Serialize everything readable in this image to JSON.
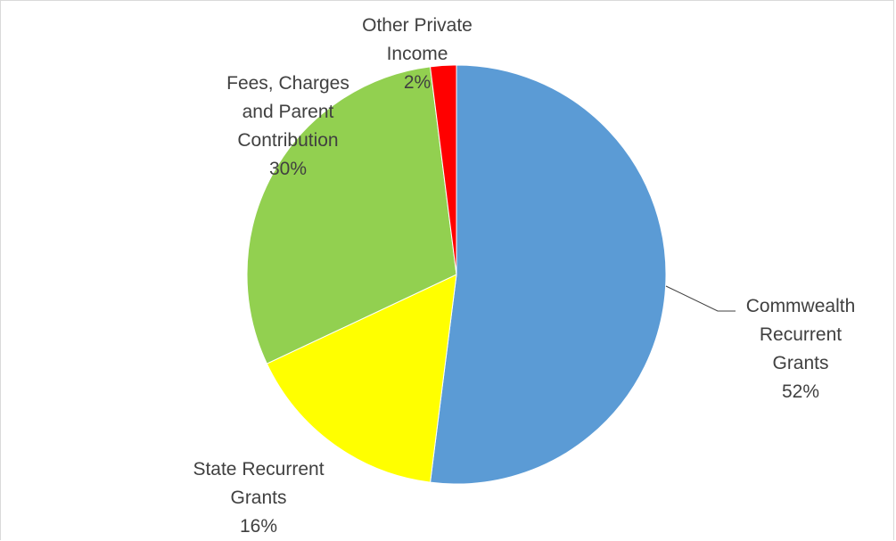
{
  "chart_data": {
    "type": "pie",
    "title": "",
    "start_angle_deg": 0,
    "direction": "clockwise",
    "slices": [
      {
        "name": "Commwealth Recurrent Grants",
        "label_lines": [
          "Commwealth",
          "Recurrent",
          "Grants"
        ],
        "value": 52,
        "value_label": "52%",
        "color": "#5B9BD5"
      },
      {
        "name": "State Recurrent Grants",
        "label_lines": [
          "State Recurrent",
          "Grants"
        ],
        "value": 16,
        "value_label": "16%",
        "color": "#FFFF00"
      },
      {
        "name": "Fees, Charges and Parent Contribution",
        "label_lines": [
          "Fees, Charges",
          "and Parent",
          "Contribution"
        ],
        "value": 30,
        "value_label": "30%",
        "color": "#92D050"
      },
      {
        "name": "Other Private Income",
        "label_lines": [
          "Other Private",
          "Income"
        ],
        "value": 2,
        "value_label": "2%",
        "color": "#FF0000"
      }
    ],
    "legend": "none",
    "data_labels": "outside",
    "leader_lines": true
  }
}
